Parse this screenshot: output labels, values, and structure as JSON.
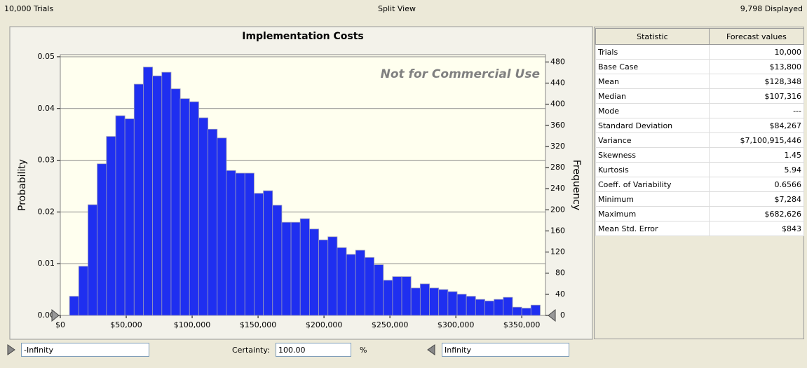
{
  "header": {
    "trials": "10,000 Trials",
    "view": "Split View",
    "displayed": "9,798 Displayed"
  },
  "chart_data": {
    "type": "histogram",
    "title": "Implementation Costs",
    "annotation": "Not for Commercial Use",
    "ylabel": "Probability",
    "y2label": "Frequency",
    "color": "#1f2ff0",
    "grid": true,
    "bins": [
      7000,
      14000,
      21000,
      28000,
      35000,
      42000,
      49000,
      56000,
      63000,
      70000,
      77000,
      84000,
      91000,
      98000,
      105000,
      112000,
      119000,
      126000,
      133000,
      140000,
      147000,
      154000,
      161000,
      168000,
      175000,
      182000,
      189000,
      196000,
      203000,
      210000,
      217000,
      224000,
      231000,
      238000,
      245000,
      252000,
      259000,
      266000,
      273000,
      280000,
      287000,
      294000,
      301000,
      308000,
      315000,
      322000,
      329000,
      336000,
      343000,
      350000,
      357000,
      364000
    ],
    "values": [
      0.0037,
      0.0095,
      0.0214,
      0.0293,
      0.0346,
      0.0386,
      0.038,
      0.0447,
      0.048,
      0.0463,
      0.047,
      0.0438,
      0.0419,
      0.0413,
      0.0382,
      0.036,
      0.0343,
      0.028,
      0.0275,
      0.0275,
      0.0236,
      0.0241,
      0.0213,
      0.018,
      0.018,
      0.0187,
      0.0167,
      0.0146,
      0.0152,
      0.0131,
      0.0118,
      0.0126,
      0.0112,
      0.0098,
      0.0068,
      0.0075,
      0.0075,
      0.0053,
      0.0061,
      0.0053,
      0.005,
      0.0046,
      0.0041,
      0.0037,
      0.0031,
      0.0028,
      0.0031,
      0.0035,
      0.0016,
      0.0014,
      0.002
    ],
    "xlim": [
      0,
      368000
    ],
    "xticks": [
      {
        "value": 0,
        "label": "$0"
      },
      {
        "value": 50000,
        "label": "$50,000"
      },
      {
        "value": 100000,
        "label": "$100,000"
      },
      {
        "value": 150000,
        "label": "$150,000"
      },
      {
        "value": 200000,
        "label": "$200,000"
      },
      {
        "value": 250000,
        "label": "$250,000"
      },
      {
        "value": 300000,
        "label": "$300,000"
      },
      {
        "value": 350000,
        "label": "$350,000"
      }
    ],
    "ylim": [
      0,
      0.0504
    ],
    "yticks": [
      {
        "value": 0,
        "label": "0.00"
      },
      0.01,
      0.02,
      0.03,
      0.04,
      0.05
    ],
    "y2lim": [
      0,
      493.8
    ],
    "y2ticks": [
      0,
      40,
      80,
      120,
      160,
      200,
      240,
      280,
      320,
      360,
      400,
      440,
      480
    ]
  },
  "stats": {
    "header": [
      "Statistic",
      "Forecast values"
    ],
    "rows": [
      [
        "Trials",
        "10,000"
      ],
      [
        "Base Case",
        "$13,800"
      ],
      [
        "Mean",
        "$128,348"
      ],
      [
        "Median",
        "$107,316"
      ],
      [
        "Mode",
        "---"
      ],
      [
        "Standard Deviation",
        "$84,267"
      ],
      [
        "Variance",
        "$7,100,915,446"
      ],
      [
        "Skewness",
        "1.45"
      ],
      [
        "Kurtosis",
        "5.94"
      ],
      [
        "Coeff. of Variability",
        "0.6566"
      ],
      [
        "Minimum",
        "$7,284"
      ],
      [
        "Maximum",
        "$682,626"
      ],
      [
        "Mean Std. Error",
        "$843"
      ]
    ]
  },
  "footer": {
    "lower": "-Infinity",
    "certainty_label": "Certainty:",
    "certainty": "100.00",
    "unit": "%",
    "upper": "Infinity"
  }
}
